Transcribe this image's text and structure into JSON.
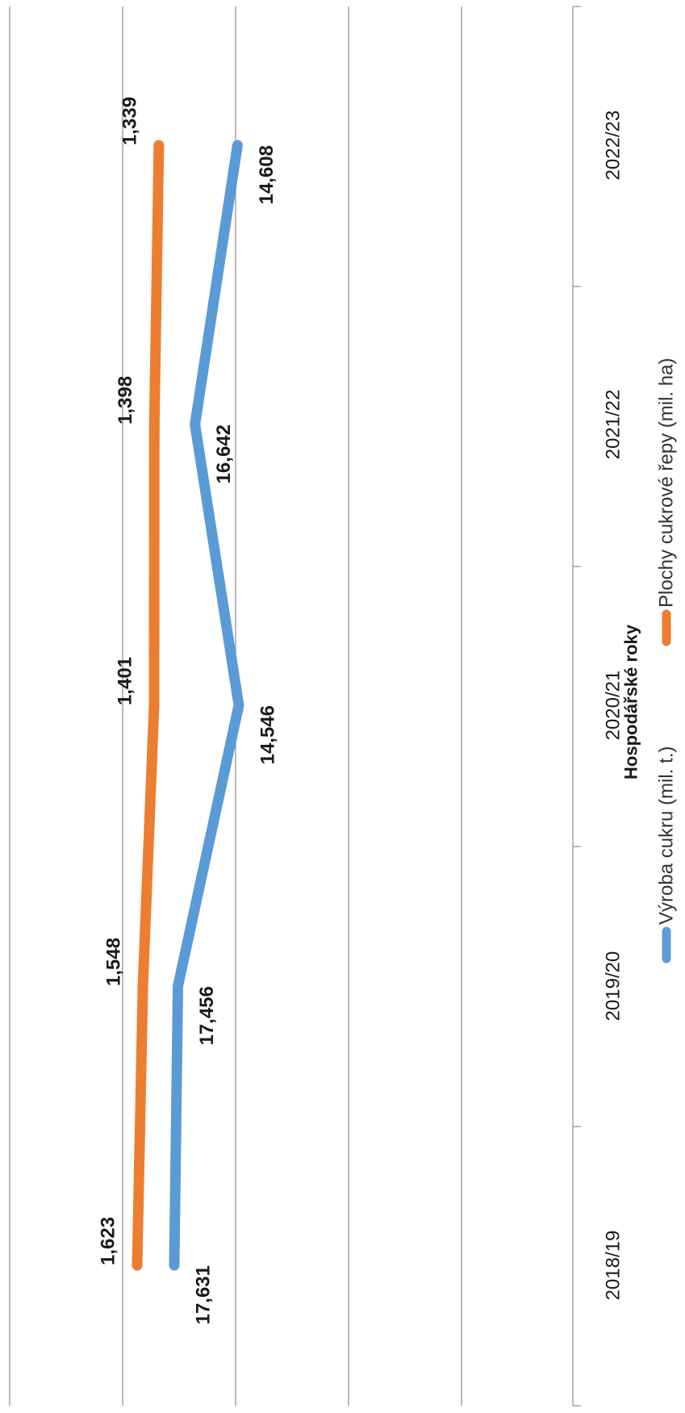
{
  "chart_data": {
    "type": "line",
    "orientation": "rotated-90-clockwise",
    "categories": [
      "2018/19",
      "2019/20",
      "2020/21",
      "2021/22",
      "2022/23"
    ],
    "xlabel": "Hospodářské roky",
    "series": [
      {
        "name": "Výroba cukru (mil. t.)",
        "values": [
          17.631,
          17.456,
          14.546,
          16.642,
          14.608
        ],
        "labels": [
          "17,631",
          "17,456",
          "14,546",
          "16,642",
          "14,608"
        ],
        "color": "#5b9bd5",
        "scale": "secondary"
      },
      {
        "name": "Plochy cukrové řepy (mil. ha)",
        "values": [
          1.623,
          1.548,
          1.401,
          1.398,
          1.339
        ],
        "labels": [
          "1,623",
          "1,548",
          "1,401",
          "1,398",
          "1,339"
        ],
        "color": "#ed7d31",
        "scale": "primary"
      }
    ],
    "grid": true,
    "legend": "bottom"
  }
}
